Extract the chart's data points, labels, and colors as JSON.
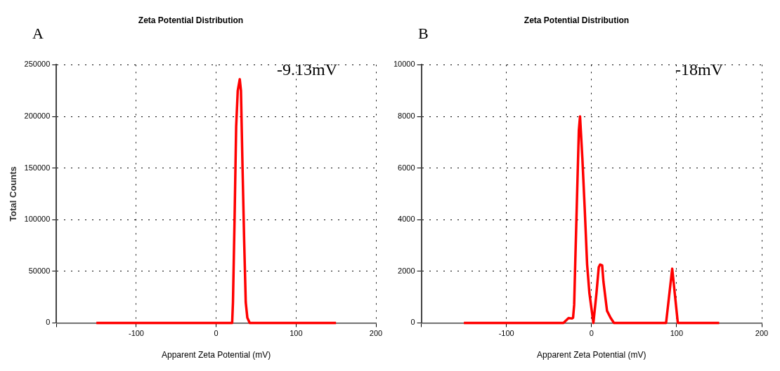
{
  "chart_data": [
    {
      "type": "line",
      "title": "Zeta Potential Distribution",
      "xlabel": "Apparent Zeta Potential (mV)",
      "ylabel": "Total Counts",
      "annotations": [
        "A",
        "-9.13mV"
      ],
      "series": [
        {
          "color": "#ff0000",
          "x": [
            -150,
            20,
            21,
            23,
            25,
            27,
            29.5,
            31,
            33,
            35,
            37,
            39,
            42,
            150
          ],
          "values": [
            0,
            0,
            20000,
            100000,
            190000,
            225000,
            236000,
            225000,
            150000,
            80000,
            20000,
            5000,
            0,
            0
          ]
        }
      ],
      "xlim": [
        -200,
        200
      ],
      "xticks": [
        {
          "value": -200,
          "label": null
        },
        -100,
        0,
        100,
        200
      ],
      "ylim": [
        0,
        250000
      ],
      "yticks": [
        0,
        50000,
        100000,
        150000,
        200000,
        250000
      ],
      "grid": true,
      "legend": false,
      "marker": "none",
      "line_style": "solid"
    },
    {
      "type": "line",
      "title": "Zeta Potential Distribution",
      "xlabel": "Apparent Zeta Potential (mV)",
      "annotations": [
        "B",
        "-18mV"
      ],
      "series": [
        {
          "color": "#ff0000",
          "x": [
            -150,
            -33,
            -27,
            -23,
            -21.7,
            -20.4,
            -19,
            -16.3,
            -14.9,
            -13.5,
            -10.7,
            -8,
            -5.2,
            -2.5,
            2.2,
            5.8,
            8.5,
            10,
            12.5,
            14,
            18.2,
            22.3,
            26.4,
            87.6,
            94.8,
            101.4,
            150
          ],
          "values": [
            0,
            0,
            190,
            170,
            200,
            700,
            2500,
            5770,
            7460,
            8000,
            6330,
            4420,
            2270,
            1150,
            0,
            1150,
            2160,
            2260,
            2230,
            1600,
            470,
            200,
            0,
            0,
            2100,
            0,
            0
          ]
        }
      ],
      "xlim": [
        -200,
        200
      ],
      "xticks": [
        {
          "value": -200,
          "label": null
        },
        -100,
        0,
        100,
        200
      ],
      "ylim": [
        0,
        10000
      ],
      "yticks": [
        0,
        2000,
        4000,
        6000,
        8000,
        10000
      ],
      "grid": true,
      "legend": false,
      "marker": "none",
      "line_style": "solid"
    }
  ]
}
